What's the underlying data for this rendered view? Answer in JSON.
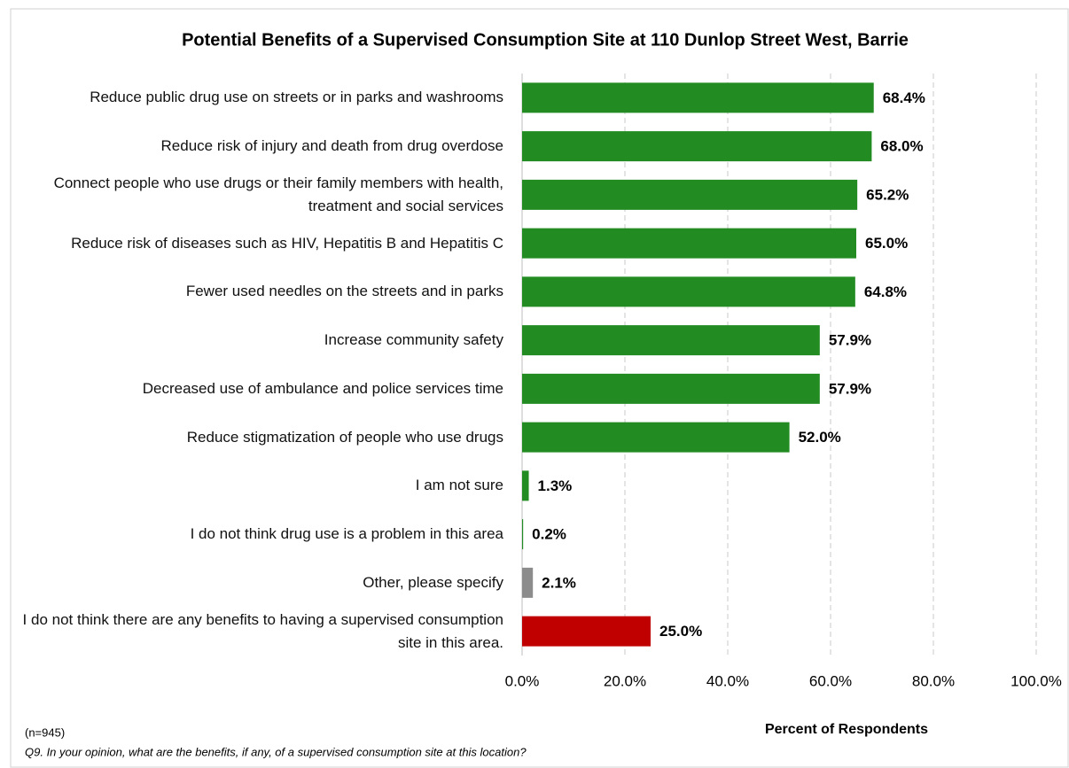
{
  "chart_data": {
    "type": "barh",
    "title": "Potential Benefits of a Supervised Consumption  Site at 110 Dunlop Street West, Barrie",
    "categories": [
      "Reduce public drug use on streets or in parks and washrooms",
      "Reduce risk of injury and death from drug overdose",
      "Connect people who use drugs or their family members with health, treatment and social services",
      "Reduce risk of diseases such as HIV, Hepatitis B and Hepatitis C",
      "Fewer used needles on the streets and in parks",
      "Increase community safety",
      "Decreased use of ambulance and police services time",
      "Reduce stigmatization of people who use drugs",
      "I am not sure",
      "I do not think drug use is a problem in this area",
      "Other, please specify",
      "I do not think there are any benefits to having a supervised consumption site in this area."
    ],
    "values": [
      68.4,
      68.0,
      65.2,
      65.0,
      64.8,
      57.9,
      57.9,
      52.0,
      1.3,
      0.2,
      2.1,
      25.0
    ],
    "value_labels": [
      "68.4%",
      "68.0%",
      "65.2%",
      "65.0%",
      "64.8%",
      "57.9%",
      "57.9%",
      "52.0%",
      "1.3%",
      "0.2%",
      "2.1%",
      "25.0%"
    ],
    "colors": [
      "#228b22",
      "#228b22",
      "#228b22",
      "#228b22",
      "#228b22",
      "#228b22",
      "#228b22",
      "#228b22",
      "#228b22",
      "#228b22",
      "#8c8c8c",
      "#c00000"
    ],
    "xlim": [
      0,
      100
    ],
    "xticks": [
      {
        "value": 0,
        "label": "0.0%"
      },
      {
        "value": 20,
        "label": "20.0%"
      },
      {
        "value": 40,
        "label": "40.0%"
      },
      {
        "value": 60,
        "label": "60.0%"
      },
      {
        "value": 80,
        "label": "80.0%"
      },
      {
        "value": 100,
        "label": "100.0%"
      }
    ],
    "xlabel": "Percent of Respondents",
    "grid": true,
    "notes": [
      "(n=945)",
      "Q9. In your opinion, what are the benefits, if any, of a supervised consumption site at this location?"
    ]
  }
}
